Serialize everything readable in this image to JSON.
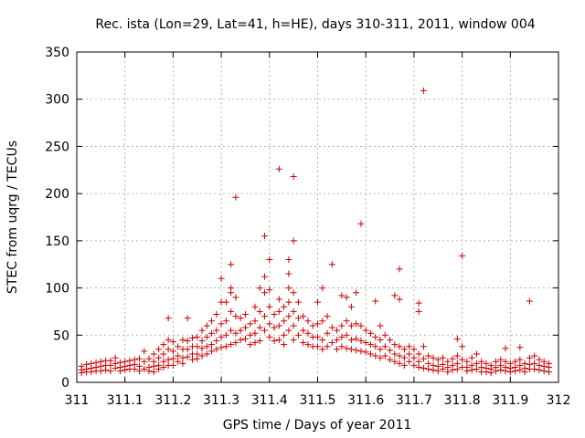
{
  "chart_data": {
    "type": "scatter",
    "title": "Rec. ista (Lon=29, Lat=41, h=HE), days 310-311, 2011, window 004",
    "xlabel": "GPS time / Days of year 2011",
    "ylabel": "STEC from uqrg / TECUs",
    "xlim": [
      311,
      312
    ],
    "ylim": [
      0,
      350
    ],
    "xticks": [
      "311",
      "311.1",
      "311.2",
      "311.3",
      "311.4",
      "311.5",
      "311.6",
      "311.7",
      "311.8",
      "311.9",
      "312"
    ],
    "yticks": [
      "0",
      "50",
      "100",
      "150",
      "200",
      "250",
      "300",
      "350"
    ],
    "grid": true,
    "marker": "+",
    "color": "#cc0000",
    "points": [
      [
        311.01,
        17
      ],
      [
        311.01,
        13
      ],
      [
        311.01,
        10
      ],
      [
        311.02,
        19
      ],
      [
        311.02,
        14
      ],
      [
        311.02,
        11
      ],
      [
        311.03,
        20
      ],
      [
        311.03,
        15
      ],
      [
        311.03,
        11
      ],
      [
        311.04,
        21
      ],
      [
        311.04,
        16
      ],
      [
        311.04,
        12
      ],
      [
        311.05,
        22
      ],
      [
        311.05,
        17
      ],
      [
        311.05,
        12
      ],
      [
        311.06,
        23
      ],
      [
        311.06,
        18
      ],
      [
        311.06,
        13
      ],
      [
        311.07,
        23
      ],
      [
        311.07,
        18
      ],
      [
        311.07,
        12
      ],
      [
        311.08,
        26
      ],
      [
        311.08,
        20
      ],
      [
        311.08,
        15
      ],
      [
        311.09,
        21
      ],
      [
        311.09,
        16
      ],
      [
        311.09,
        12
      ],
      [
        311.1,
        22
      ],
      [
        311.1,
        17
      ],
      [
        311.1,
        13
      ],
      [
        311.11,
        23
      ],
      [
        311.11,
        18
      ],
      [
        311.11,
        14
      ],
      [
        311.12,
        24
      ],
      [
        311.12,
        19
      ],
      [
        311.12,
        14
      ],
      [
        311.13,
        25
      ],
      [
        311.13,
        17
      ],
      [
        311.13,
        12
      ],
      [
        311.14,
        33
      ],
      [
        311.14,
        22
      ],
      [
        311.14,
        14
      ],
      [
        311.15,
        25
      ],
      [
        311.15,
        16
      ],
      [
        311.15,
        12
      ],
      [
        311.16,
        30
      ],
      [
        311.16,
        22
      ],
      [
        311.16,
        17
      ],
      [
        311.16,
        11
      ],
      [
        311.17,
        35
      ],
      [
        311.17,
        26
      ],
      [
        311.17,
        18
      ],
      [
        311.17,
        14
      ],
      [
        311.18,
        40
      ],
      [
        311.18,
        30
      ],
      [
        311.18,
        22
      ],
      [
        311.18,
        16
      ],
      [
        311.19,
        45
      ],
      [
        311.19,
        35
      ],
      [
        311.19,
        24
      ],
      [
        311.19,
        18
      ],
      [
        311.19,
        68
      ],
      [
        311.2,
        43
      ],
      [
        311.2,
        33
      ],
      [
        311.2,
        25
      ],
      [
        311.2,
        18
      ],
      [
        311.21,
        38
      ],
      [
        311.21,
        28
      ],
      [
        311.21,
        22
      ],
      [
        311.22,
        45
      ],
      [
        311.22,
        35
      ],
      [
        311.22,
        26
      ],
      [
        311.22,
        20
      ],
      [
        311.23,
        68
      ],
      [
        311.23,
        44
      ],
      [
        311.23,
        35
      ],
      [
        311.23,
        27
      ],
      [
        311.24,
        47
      ],
      [
        311.24,
        38
      ],
      [
        311.24,
        30
      ],
      [
        311.24,
        24
      ],
      [
        311.25,
        48
      ],
      [
        311.25,
        38
      ],
      [
        311.25,
        30
      ],
      [
        311.25,
        25
      ],
      [
        311.26,
        55
      ],
      [
        311.26,
        44
      ],
      [
        311.26,
        36
      ],
      [
        311.26,
        28
      ],
      [
        311.27,
        60
      ],
      [
        311.27,
        48
      ],
      [
        311.27,
        38
      ],
      [
        311.27,
        30
      ],
      [
        311.28,
        65
      ],
      [
        311.28,
        52
      ],
      [
        311.28,
        40
      ],
      [
        311.28,
        33
      ],
      [
        311.29,
        72
      ],
      [
        311.29,
        55
      ],
      [
        311.29,
        44
      ],
      [
        311.29,
        35
      ],
      [
        311.3,
        85
      ],
      [
        311.3,
        62
      ],
      [
        311.3,
        48
      ],
      [
        311.3,
        37
      ],
      [
        311.3,
        110
      ],
      [
        311.31,
        85
      ],
      [
        311.31,
        65
      ],
      [
        311.31,
        50
      ],
      [
        311.31,
        38
      ],
      [
        311.32,
        125
      ],
      [
        311.32,
        100
      ],
      [
        311.32,
        95
      ],
      [
        311.32,
        75
      ],
      [
        311.32,
        55
      ],
      [
        311.32,
        40
      ],
      [
        311.33,
        196
      ],
      [
        311.33,
        90
      ],
      [
        311.33,
        70
      ],
      [
        311.33,
        52
      ],
      [
        311.33,
        42
      ],
      [
        311.34,
        68
      ],
      [
        311.34,
        55
      ],
      [
        311.34,
        45
      ],
      [
        311.35,
        72
      ],
      [
        311.35,
        58
      ],
      [
        311.35,
        46
      ],
      [
        311.36,
        62
      ],
      [
        311.36,
        50
      ],
      [
        311.36,
        40
      ],
      [
        311.37,
        80
      ],
      [
        311.37,
        65
      ],
      [
        311.37,
        52
      ],
      [
        311.37,
        42
      ],
      [
        311.38,
        100
      ],
      [
        311.38,
        75
      ],
      [
        311.38,
        58
      ],
      [
        311.38,
        44
      ],
      [
        311.39,
        155
      ],
      [
        311.39,
        112
      ],
      [
        311.39,
        95
      ],
      [
        311.39,
        70
      ],
      [
        311.39,
        55
      ],
      [
        311.4,
        130
      ],
      [
        311.4,
        98
      ],
      [
        311.4,
        80
      ],
      [
        311.4,
        62
      ],
      [
        311.4,
        48
      ],
      [
        311.41,
        72
      ],
      [
        311.41,
        58
      ],
      [
        311.41,
        44
      ],
      [
        311.42,
        226
      ],
      [
        311.42,
        88
      ],
      [
        311.42,
        75
      ],
      [
        311.42,
        60
      ],
      [
        311.42,
        45
      ],
      [
        311.43,
        80
      ],
      [
        311.43,
        65
      ],
      [
        311.43,
        50
      ],
      [
        311.43,
        40
      ],
      [
        311.44,
        130
      ],
      [
        311.44,
        115
      ],
      [
        311.44,
        100
      ],
      [
        311.44,
        85
      ],
      [
        311.44,
        70
      ],
      [
        311.44,
        55
      ],
      [
        311.45,
        218
      ],
      [
        311.45,
        150
      ],
      [
        311.45,
        95
      ],
      [
        311.45,
        75
      ],
      [
        311.45,
        60
      ],
      [
        311.45,
        45
      ],
      [
        311.46,
        85
      ],
      [
        311.46,
        68
      ],
      [
        311.46,
        50
      ],
      [
        311.47,
        70
      ],
      [
        311.47,
        55
      ],
      [
        311.47,
        42
      ],
      [
        311.48,
        65
      ],
      [
        311.48,
        52
      ],
      [
        311.48,
        40
      ],
      [
        311.49,
        60
      ],
      [
        311.49,
        48
      ],
      [
        311.49,
        38
      ],
      [
        311.5,
        85
      ],
      [
        311.5,
        62
      ],
      [
        311.5,
        48
      ],
      [
        311.5,
        38
      ],
      [
        311.51,
        100
      ],
      [
        311.51,
        65
      ],
      [
        311.51,
        45
      ],
      [
        311.51,
        35
      ],
      [
        311.52,
        70
      ],
      [
        311.52,
        52
      ],
      [
        311.52,
        38
      ],
      [
        311.53,
        125
      ],
      [
        311.53,
        58
      ],
      [
        311.53,
        42
      ],
      [
        311.54,
        55
      ],
      [
        311.54,
        45
      ],
      [
        311.54,
        35
      ],
      [
        311.55,
        92
      ],
      [
        311.55,
        60
      ],
      [
        311.55,
        48
      ],
      [
        311.55,
        38
      ],
      [
        311.56,
        90
      ],
      [
        311.56,
        65
      ],
      [
        311.56,
        50
      ],
      [
        311.56,
        36
      ],
      [
        311.57,
        80
      ],
      [
        311.57,
        60
      ],
      [
        311.57,
        45
      ],
      [
        311.57,
        35
      ],
      [
        311.58,
        95
      ],
      [
        311.58,
        62
      ],
      [
        311.58,
        46
      ],
      [
        311.58,
        34
      ],
      [
        311.59,
        168
      ],
      [
        311.59,
        60
      ],
      [
        311.59,
        44
      ],
      [
        311.59,
        33
      ],
      [
        311.6,
        55
      ],
      [
        311.6,
        42
      ],
      [
        311.6,
        32
      ],
      [
        311.61,
        52
      ],
      [
        311.61,
        40
      ],
      [
        311.61,
        30
      ],
      [
        311.62,
        86
      ],
      [
        311.62,
        48
      ],
      [
        311.62,
        38
      ],
      [
        311.62,
        28
      ],
      [
        311.63,
        60
      ],
      [
        311.63,
        45
      ],
      [
        311.63,
        35
      ],
      [
        311.63,
        26
      ],
      [
        311.64,
        50
      ],
      [
        311.64,
        38
      ],
      [
        311.64,
        28
      ],
      [
        311.65,
        45
      ],
      [
        311.65,
        34
      ],
      [
        311.65,
        24
      ],
      [
        311.66,
        92
      ],
      [
        311.66,
        40
      ],
      [
        311.66,
        30
      ],
      [
        311.66,
        22
      ],
      [
        311.67,
        120
      ],
      [
        311.67,
        88
      ],
      [
        311.67,
        38
      ],
      [
        311.67,
        28
      ],
      [
        311.67,
        20
      ],
      [
        311.68,
        35
      ],
      [
        311.68,
        26
      ],
      [
        311.68,
        18
      ],
      [
        311.69,
        38
      ],
      [
        311.69,
        30
      ],
      [
        311.69,
        22
      ],
      [
        311.7,
        35
      ],
      [
        311.7,
        26
      ],
      [
        311.7,
        18
      ],
      [
        311.71,
        84
      ],
      [
        311.71,
        75
      ],
      [
        311.71,
        30
      ],
      [
        311.71,
        22
      ],
      [
        311.71,
        16
      ],
      [
        311.72,
        309
      ],
      [
        311.72,
        38
      ],
      [
        311.72,
        25
      ],
      [
        311.72,
        15
      ],
      [
        311.73,
        28
      ],
      [
        311.73,
        20
      ],
      [
        311.73,
        14
      ],
      [
        311.74,
        26
      ],
      [
        311.74,
        18
      ],
      [
        311.74,
        13
      ],
      [
        311.75,
        24
      ],
      [
        311.75,
        17
      ],
      [
        311.75,
        12
      ],
      [
        311.76,
        26
      ],
      [
        311.76,
        19
      ],
      [
        311.76,
        14
      ],
      [
        311.77,
        22
      ],
      [
        311.77,
        16
      ],
      [
        311.77,
        11
      ],
      [
        311.78,
        25
      ],
      [
        311.78,
        18
      ],
      [
        311.78,
        13
      ],
      [
        311.79,
        46
      ],
      [
        311.79,
        28
      ],
      [
        311.79,
        20
      ],
      [
        311.79,
        14
      ],
      [
        311.8,
        134
      ],
      [
        311.8,
        38
      ],
      [
        311.8,
        24
      ],
      [
        311.8,
        16
      ],
      [
        311.81,
        22
      ],
      [
        311.81,
        16
      ],
      [
        311.81,
        12
      ],
      [
        311.82,
        26
      ],
      [
        311.82,
        18
      ],
      [
        311.82,
        13
      ],
      [
        311.83,
        30
      ],
      [
        311.83,
        20
      ],
      [
        311.83,
        14
      ],
      [
        311.84,
        22
      ],
      [
        311.84,
        16
      ],
      [
        311.84,
        11
      ],
      [
        311.85,
        20
      ],
      [
        311.85,
        15
      ],
      [
        311.85,
        11
      ],
      [
        311.86,
        18
      ],
      [
        311.86,
        14
      ],
      [
        311.86,
        10
      ],
      [
        311.87,
        22
      ],
      [
        311.87,
        16
      ],
      [
        311.87,
        12
      ],
      [
        311.88,
        24
      ],
      [
        311.88,
        18
      ],
      [
        311.88,
        13
      ],
      [
        311.89,
        36
      ],
      [
        311.89,
        22
      ],
      [
        311.89,
        16
      ],
      [
        311.89,
        12
      ],
      [
        311.9,
        20
      ],
      [
        311.9,
        15
      ],
      [
        311.9,
        11
      ],
      [
        311.91,
        22
      ],
      [
        311.91,
        16
      ],
      [
        311.91,
        12
      ],
      [
        311.92,
        37
      ],
      [
        311.92,
        24
      ],
      [
        311.92,
        18
      ],
      [
        311.92,
        13
      ],
      [
        311.93,
        20
      ],
      [
        311.93,
        15
      ],
      [
        311.93,
        11
      ],
      [
        311.94,
        86
      ],
      [
        311.94,
        26
      ],
      [
        311.94,
        19
      ],
      [
        311.94,
        14
      ],
      [
        311.95,
        28
      ],
      [
        311.95,
        20
      ],
      [
        311.95,
        14
      ],
      [
        311.96,
        24
      ],
      [
        311.96,
        18
      ],
      [
        311.96,
        13
      ],
      [
        311.97,
        22
      ],
      [
        311.97,
        17
      ],
      [
        311.97,
        12
      ],
      [
        311.98,
        20
      ],
      [
        311.98,
        16
      ],
      [
        311.98,
        11
      ]
    ]
  }
}
